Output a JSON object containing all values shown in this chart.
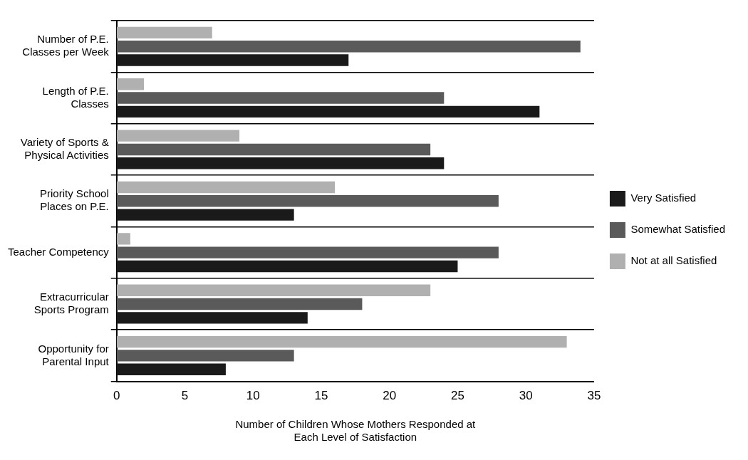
{
  "chart_data": {
    "type": "bar",
    "orientation": "horizontal",
    "categories": [
      "Number of P.E. Classes per Week",
      "Length of P.E. Classes",
      "Variety of Sports & Physical Activities",
      "Priority School Places on P.E.",
      "Teacher Competency",
      "Extracurricular Sports Program",
      "Opportunity for Parental Input"
    ],
    "series": [
      {
        "name": "Not at all Satisfied",
        "color": "#b0b0b0",
        "values": [
          7,
          2,
          9,
          16,
          1,
          23,
          33
        ]
      },
      {
        "name": "Somewhat Satisfied",
        "color": "#5a5a5a",
        "values": [
          34,
          24,
          23,
          28,
          28,
          18,
          13
        ]
      },
      {
        "name": "Very Satisfied",
        "color": "#1a1a1a",
        "values": [
          17,
          31,
          24,
          13,
          25,
          14,
          8
        ]
      }
    ],
    "xlabel": "Number of Children Whose Mothers Responded at Each Level of Satisfaction",
    "xlim": [
      0,
      35
    ],
    "xticks": [
      0,
      5,
      10,
      15,
      20,
      25,
      30,
      35
    ],
    "grid": "y",
    "legend": "right"
  }
}
